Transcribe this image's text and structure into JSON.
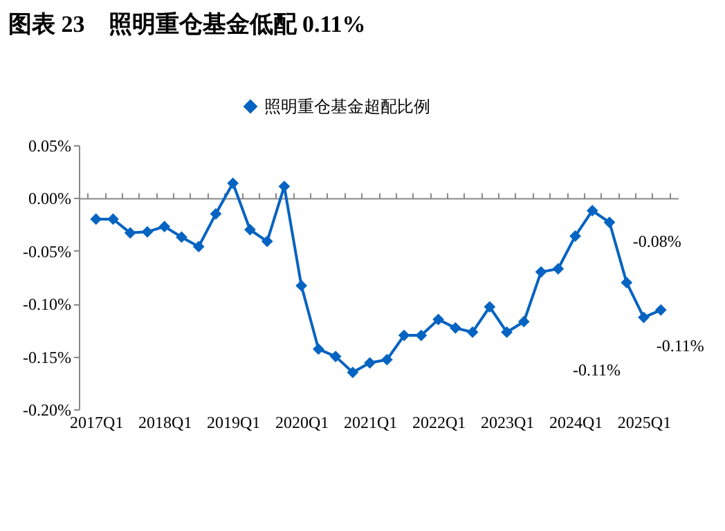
{
  "chart_data": {
    "type": "line",
    "title": "图表 23　照明重仓基金低配 0.11%",
    "categories": [
      "2017Q1",
      null,
      null,
      null,
      "2018Q1",
      null,
      null,
      null,
      "2019Q1",
      null,
      null,
      null,
      "2020Q1",
      null,
      null,
      null,
      "2021Q1",
      null,
      null,
      null,
      "2022Q1",
      null,
      null,
      null,
      "2023Q1",
      null,
      null,
      null,
      "2024Q1",
      null,
      null,
      null,
      "2025Q1",
      null
    ],
    "series": [
      {
        "name": "照明重仓基金超配比例",
        "color": "#0563c1",
        "values": [
          -0.02,
          -0.02,
          -0.033,
          -0.032,
          -0.027,
          -0.037,
          -0.046,
          -0.015,
          0.014,
          -0.03,
          -0.041,
          0.011,
          -0.083,
          -0.143,
          -0.15,
          -0.165,
          -0.156,
          -0.153,
          -0.13,
          -0.13,
          -0.115,
          -0.123,
          -0.127,
          -0.103,
          -0.127,
          -0.117,
          -0.07,
          -0.067,
          -0.036,
          -0.012,
          -0.023,
          -0.08,
          -0.113,
          -0.106
        ],
        "value_labels": [
          null,
          null,
          null,
          null,
          null,
          null,
          null,
          null,
          null,
          null,
          null,
          null,
          null,
          null,
          null,
          null,
          null,
          null,
          null,
          null,
          null,
          null,
          null,
          null,
          null,
          null,
          null,
          null,
          null,
          null,
          null,
          "-0.08%",
          "-0.11%",
          "-0.11%"
        ]
      }
    ],
    "ylim": [
      -0.2,
      0.05
    ],
    "yticks": [
      {
        "value": -0.2,
        "label": "-0.20%"
      },
      {
        "value": -0.15,
        "label": "-0.15%"
      },
      {
        "value": -0.1,
        "label": "-0.10%"
      },
      {
        "value": -0.05,
        "label": "-0.05%"
      },
      {
        "value": 0,
        "label": "0.00%"
      },
      {
        "value": 0.05,
        "label": "0.05%"
      }
    ],
    "legend": "top",
    "marker": "diamond"
  }
}
